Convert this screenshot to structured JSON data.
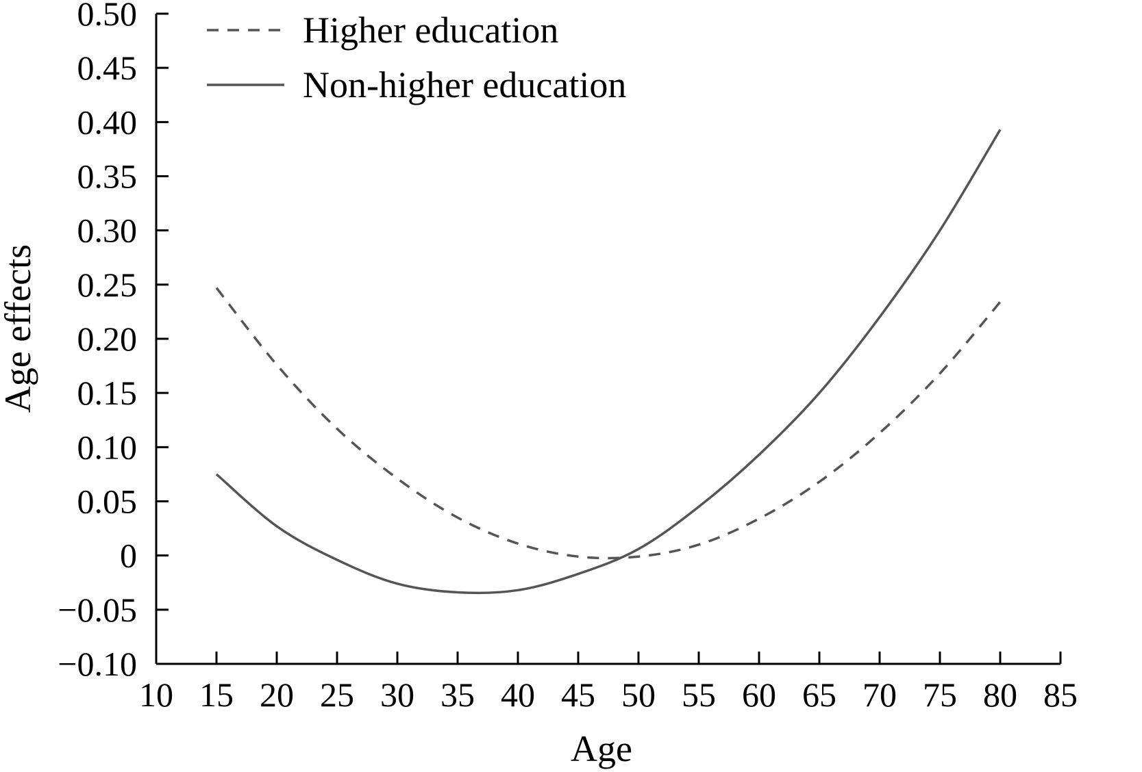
{
  "chart_data": {
    "type": "line",
    "title": "",
    "xlabel": "Age",
    "ylabel": "Age effects",
    "xlim": [
      10,
      85
    ],
    "ylim": [
      -0.1,
      0.5
    ],
    "x_ticks": [
      "10",
      "15",
      "20",
      "25",
      "30",
      "35",
      "40",
      "45",
      "50",
      "55",
      "60",
      "65",
      "70",
      "75",
      "80",
      "85"
    ],
    "y_ticks": [
      "0.50",
      "0.45",
      "0.40",
      "0.35",
      "0.30",
      "0.25",
      "0.20",
      "0.15",
      "0.10",
      "0.05",
      "0",
      "−0.05",
      "−0.10"
    ],
    "grid": false,
    "legend_position": "top-left",
    "series": [
      {
        "name": "Higher education",
        "style": "dashed",
        "color": "#555555",
        "x": [
          15,
          20,
          25,
          30,
          35,
          40,
          45,
          50,
          55,
          60,
          65,
          70,
          75,
          80
        ],
        "values": [
          0.247,
          0.176,
          0.117,
          0.071,
          0.035,
          0.011,
          -0.001,
          -0.001,
          0.01,
          0.034,
          0.068,
          0.113,
          0.168,
          0.234
        ]
      },
      {
        "name": "Non-higher education",
        "style": "solid",
        "color": "#555555",
        "x": [
          15,
          20,
          25,
          30,
          35,
          40,
          45,
          50,
          55,
          60,
          65,
          70,
          75,
          80
        ],
        "values": [
          0.075,
          0.027,
          -0.004,
          -0.026,
          -0.034,
          -0.032,
          -0.017,
          0.006,
          0.045,
          0.093,
          0.15,
          0.22,
          0.3,
          0.393
        ]
      }
    ]
  }
}
